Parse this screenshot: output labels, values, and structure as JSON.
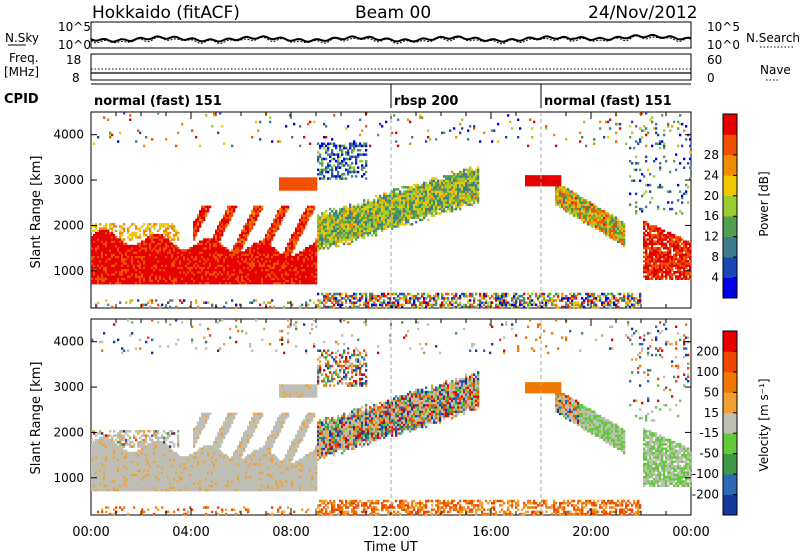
{
  "header": {
    "radar": "Hokkaido (fitACF)",
    "beam": "Beam 00",
    "date": "24/Nov/2012"
  },
  "top_panels": {
    "nsky_label": "N.Sky",
    "nsky_ticks": [
      "10^5",
      "10^0"
    ],
    "nsearch_label": "N.Search",
    "nsearch_ticks": [
      "10^5",
      "10^0"
    ],
    "freq_label": "Freq.",
    "freq_unit": "[MHz]",
    "freq_ticks": [
      "18",
      "8"
    ],
    "nave_label": "Nave",
    "nave_ticks": [
      "60",
      "0"
    ],
    "cpid_label": "CPID",
    "cpid_segments": [
      {
        "label": "normal (fast) 151",
        "start_hour": 0,
        "end_hour": 12
      },
      {
        "label": "rbsp 200",
        "start_hour": 12,
        "end_hour": 18
      },
      {
        "label": "normal (fast) 151",
        "start_hour": 18,
        "end_hour": 24
      }
    ]
  },
  "x_axis": {
    "label": "Time UT",
    "ticks": [
      "00:00",
      "04:00",
      "08:00",
      "12:00",
      "16:00",
      "20:00",
      "00:00"
    ]
  },
  "chart_data": [
    {
      "type": "heatmap",
      "ylabel": "Slant Range [km]",
      "yticks": [
        "1000",
        "2000",
        "3000",
        "4000"
      ],
      "ylim": [
        180,
        4500
      ],
      "xlim_hours": [
        0,
        24
      ],
      "colorbar_label": "Power [dB]",
      "colorbar_ticks": [
        "4",
        "8",
        "12",
        "16",
        "20",
        "24",
        "28"
      ],
      "colors": [
        "#0000e6",
        "#1c46b4",
        "#3c7a8c",
        "#50a050",
        "#9ccc32",
        "#f0c800",
        "#f08c00",
        "#f05000",
        "#e60000"
      ]
    },
    {
      "type": "heatmap",
      "ylabel": "Slant Range [km]",
      "yticks": [
        "1000",
        "2000",
        "3000",
        "4000"
      ],
      "ylim": [
        180,
        4500
      ],
      "xlim_hours": [
        0,
        24
      ],
      "colorbar_label": "Velocity [m s⁻¹]",
      "colorbar_ticks": [
        "200",
        "100",
        "50",
        "15",
        "-15",
        "-50",
        "-100",
        "-200"
      ],
      "colors": [
        "#1438a0",
        "#2a6ab4",
        "#3c9a46",
        "#64c83c",
        "#bebeb4",
        "#f0a030",
        "#f07800",
        "#f04600",
        "#e60000"
      ]
    }
  ]
}
